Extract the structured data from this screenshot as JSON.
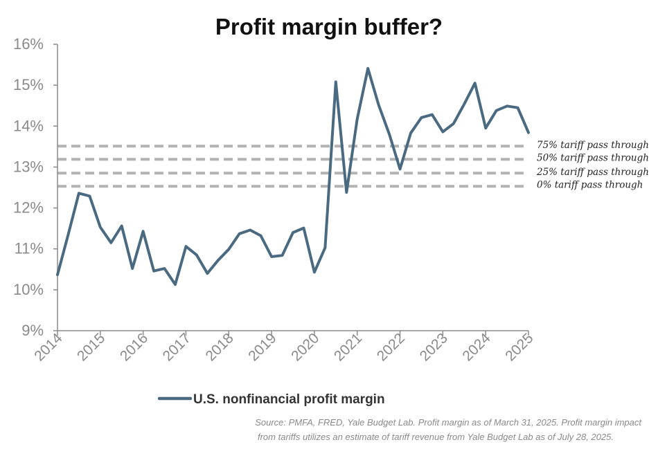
{
  "chart_data": {
    "type": "line",
    "title": "Profit margin buffer?",
    "xlabel": "",
    "ylabel": "",
    "xlim": [
      2014,
      2025
    ],
    "ylim": [
      9,
      16
    ],
    "y_ticks": [
      9,
      10,
      11,
      12,
      13,
      14,
      15,
      16
    ],
    "y_tick_labels": [
      "9%",
      "10%",
      "11%",
      "12%",
      "13%",
      "14%",
      "15%",
      "16%"
    ],
    "x_ticks": [
      2014,
      2015,
      2016,
      2017,
      2018,
      2019,
      2020,
      2021,
      2022,
      2023,
      2024,
      2025
    ],
    "x_tick_labels": [
      "2014",
      "2015",
      "2016",
      "2017",
      "2018",
      "2019",
      "2020",
      "2021",
      "2022",
      "2023",
      "2024",
      "2025"
    ],
    "grid": false,
    "legend_position": "bottom",
    "series": [
      {
        "name": "U.S. nonfinancial profit margin",
        "color": "#4a6a82",
        "x": [
          2014.0,
          2014.25,
          2014.5,
          2014.75,
          2015.0,
          2015.25,
          2015.5,
          2015.75,
          2016.0,
          2016.25,
          2016.5,
          2016.75,
          2017.0,
          2017.25,
          2017.5,
          2017.75,
          2018.0,
          2018.25,
          2018.5,
          2018.75,
          2019.0,
          2019.25,
          2019.5,
          2019.75,
          2020.0,
          2020.25,
          2020.5,
          2020.75,
          2021.0,
          2021.25,
          2021.5,
          2021.75,
          2022.0,
          2022.25,
          2022.5,
          2022.75,
          2023.0,
          2023.25,
          2023.5,
          2023.75,
          2024.0,
          2024.25,
          2024.5,
          2024.75,
          2025.0
        ],
        "values": [
          10.37,
          11.35,
          12.36,
          12.29,
          11.53,
          11.15,
          11.56,
          10.52,
          11.43,
          10.46,
          10.52,
          10.13,
          11.06,
          10.85,
          10.4,
          10.72,
          10.99,
          11.37,
          11.46,
          11.32,
          10.81,
          10.84,
          11.4,
          11.51,
          10.43,
          11.03,
          15.08,
          12.38,
          14.17,
          15.41,
          14.52,
          13.8,
          12.95,
          13.83,
          14.21,
          14.28,
          13.86,
          14.06,
          14.54,
          15.05,
          13.95,
          14.38,
          14.49,
          14.45,
          13.84
        ]
      }
    ],
    "reference_lines": [
      {
        "label": "75% tariff pass through",
        "value": 13.51,
        "color": "#b3b3b3"
      },
      {
        "label": "50% tariff pass through",
        "value": 13.19,
        "color": "#b3b3b3"
      },
      {
        "label": "25% tariff pass through",
        "value": 12.85,
        "color": "#b3b3b3"
      },
      {
        "label": "0% tariff pass through",
        "value": 12.53,
        "color": "#b3b3b3"
      }
    ]
  },
  "legend": {
    "label": "U.S. nonfinancial profit margin"
  },
  "source": {
    "line1": "Source: PMFA, FRED, Yale Budget Lab. Profit margin as of March 31, 2025. Profit margin impact",
    "line2": "from tariffs utilizes an estimate of tariff revenue from Yale Budget Lab as of July 28, 2025."
  },
  "colors": {
    "axis": "#8a8a8a",
    "series": "#4a6a82",
    "reference": "#b3b3b3"
  }
}
